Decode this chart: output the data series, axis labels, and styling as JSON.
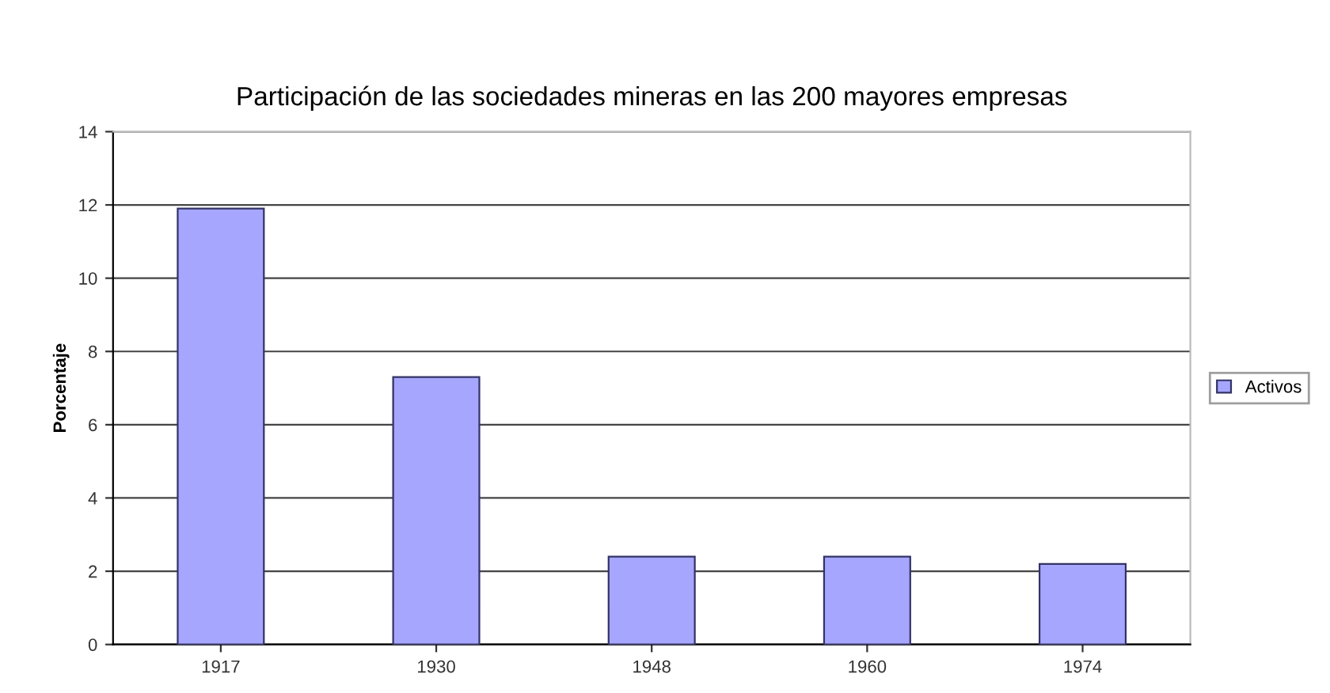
{
  "chart_data": {
    "type": "bar",
    "title": "Participación de las sociedades mineras en las 200 mayores empresas",
    "ylabel": "Porcentaje",
    "categories": [
      "1917",
      "1930",
      "1948",
      "1960",
      "1974"
    ],
    "series": [
      {
        "name": "Activos",
        "color": "#a6a6ff",
        "values": [
          11.9,
          7.3,
          2.4,
          2.4,
          2.2
        ]
      }
    ],
    "ylim": [
      0,
      14
    ],
    "yticks": [
      0,
      2,
      4,
      6,
      8,
      10,
      12,
      14
    ],
    "grid": "y",
    "legend": "right"
  }
}
